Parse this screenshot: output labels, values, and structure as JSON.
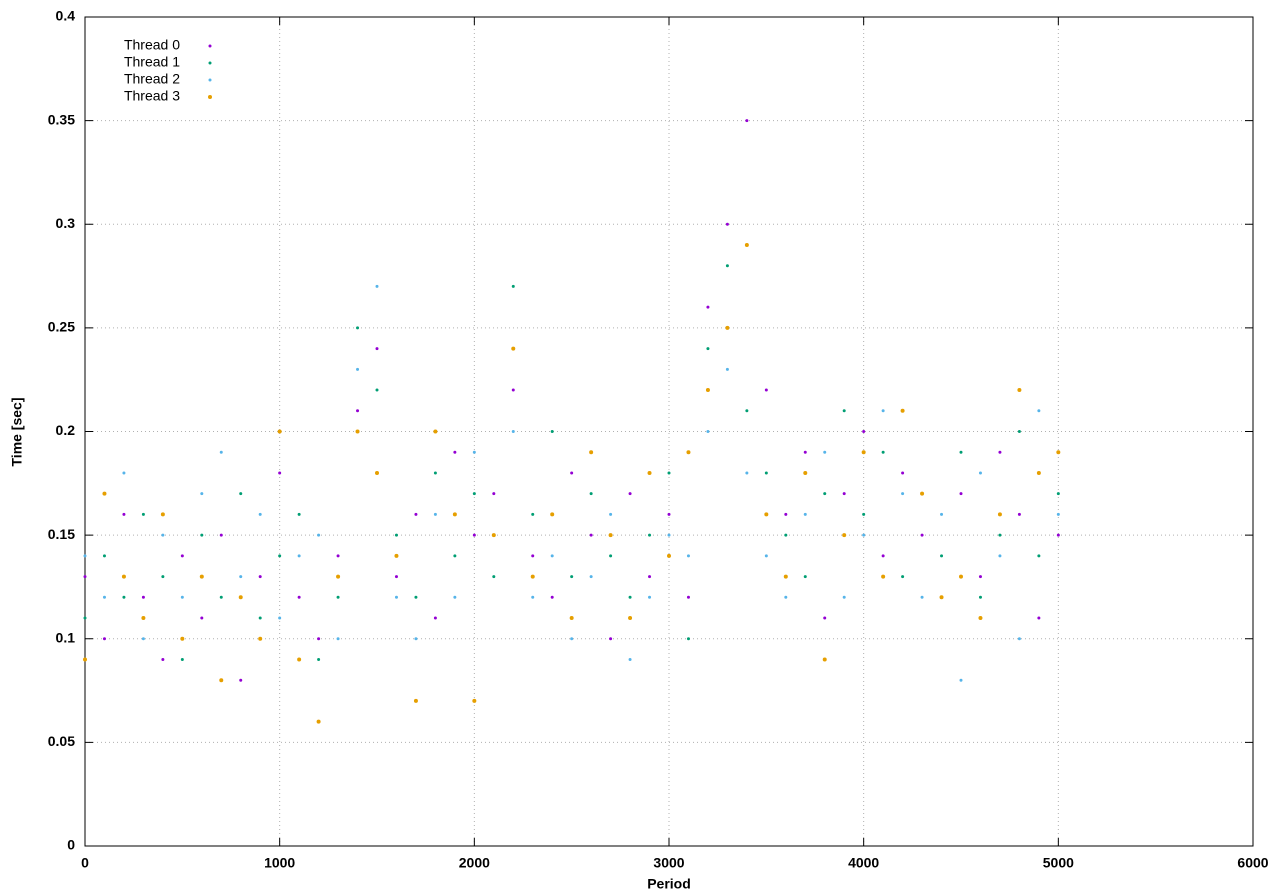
{
  "chart_data": {
    "type": "scatter",
    "xlabel": "Period",
    "ylabel": "Time [sec]",
    "xlim": [
      0,
      6000
    ],
    "ylim": [
      0,
      0.4
    ],
    "xticks": [
      0,
      1000,
      2000,
      3000,
      4000,
      5000,
      6000
    ],
    "yticks": [
      0,
      0.05,
      0.1,
      0.15,
      0.2,
      0.25,
      0.3,
      0.35,
      0.4
    ],
    "grid": true,
    "legend": "top-left",
    "x": [
      0,
      100,
      200,
      300,
      400,
      500,
      600,
      700,
      800,
      900,
      1000,
      1100,
      1200,
      1300,
      1400,
      1500,
      1600,
      1700,
      1800,
      1900,
      2000,
      2100,
      2200,
      2300,
      2400,
      2500,
      2600,
      2700,
      2800,
      2900,
      3000,
      3100,
      3200,
      3300,
      3400,
      3500,
      3600,
      3700,
      3800,
      3900,
      4000,
      4100,
      4200,
      4300,
      4400,
      4500,
      4600,
      4700,
      4800,
      4900,
      5000
    ],
    "series": [
      {
        "name": "Thread 0",
        "color": "#9400d3",
        "values": [
          0.13,
          0.1,
          0.16,
          0.12,
          0.09,
          0.14,
          0.11,
          0.15,
          0.08,
          0.13,
          0.18,
          0.12,
          0.1,
          0.14,
          0.21,
          0.24,
          0.13,
          0.16,
          0.11,
          0.19,
          0.15,
          0.17,
          0.22,
          0.14,
          0.12,
          0.18,
          0.15,
          0.1,
          0.17,
          0.13,
          0.16,
          0.12,
          0.26,
          0.3,
          0.35,
          0.22,
          0.16,
          0.19,
          0.11,
          0.17,
          0.2,
          0.14,
          0.18,
          0.15,
          0.12,
          0.17,
          0.13,
          0.19,
          0.16,
          0.11,
          0.15
        ]
      },
      {
        "name": "Thread 1",
        "color": "#009e73",
        "values": [
          0.11,
          0.14,
          0.12,
          0.16,
          0.13,
          0.09,
          0.15,
          0.12,
          0.17,
          0.11,
          0.14,
          0.16,
          0.09,
          0.12,
          0.25,
          0.22,
          0.15,
          0.12,
          0.18,
          0.14,
          0.17,
          0.13,
          0.27,
          0.16,
          0.2,
          0.13,
          0.17,
          0.14,
          0.12,
          0.15,
          0.18,
          0.1,
          0.24,
          0.28,
          0.21,
          0.18,
          0.15,
          0.13,
          0.17,
          0.21,
          0.16,
          0.19,
          0.13,
          0.17,
          0.14,
          0.19,
          0.12,
          0.15,
          0.2,
          0.14,
          0.17
        ]
      },
      {
        "name": "Thread 2",
        "color": "#56b4e9",
        "values": [
          0.14,
          0.12,
          0.18,
          0.1,
          0.15,
          0.12,
          0.17,
          0.19,
          0.13,
          0.16,
          0.11,
          0.14,
          0.15,
          0.1,
          0.23,
          0.27,
          0.12,
          0.1,
          0.16,
          0.12,
          0.19,
          0.15,
          0.2,
          0.12,
          0.14,
          0.1,
          0.13,
          0.16,
          0.09,
          0.12,
          0.15,
          0.14,
          0.2,
          0.23,
          0.18,
          0.14,
          0.12,
          0.16,
          0.19,
          0.12,
          0.15,
          0.21,
          0.17,
          0.12,
          0.16,
          0.08,
          0.18,
          0.14,
          0.1,
          0.21,
          0.16
        ]
      },
      {
        "name": "Thread 3",
        "color": "#e69f00",
        "values": [
          0.09,
          0.17,
          0.13,
          0.11,
          0.16,
          0.1,
          0.13,
          0.08,
          0.12,
          0.1,
          0.2,
          0.09,
          0.06,
          0.13,
          0.2,
          0.18,
          0.14,
          0.07,
          0.2,
          0.16,
          0.07,
          0.15,
          0.24,
          0.13,
          0.16,
          0.11,
          0.19,
          0.15,
          0.11,
          0.18,
          0.14,
          0.19,
          0.22,
          0.25,
          0.29,
          0.16,
          0.13,
          0.18,
          0.09,
          0.15,
          0.19,
          0.13,
          0.21,
          0.17,
          0.12,
          0.13,
          0.11,
          0.16,
          0.22,
          0.18,
          0.19
        ]
      }
    ]
  }
}
